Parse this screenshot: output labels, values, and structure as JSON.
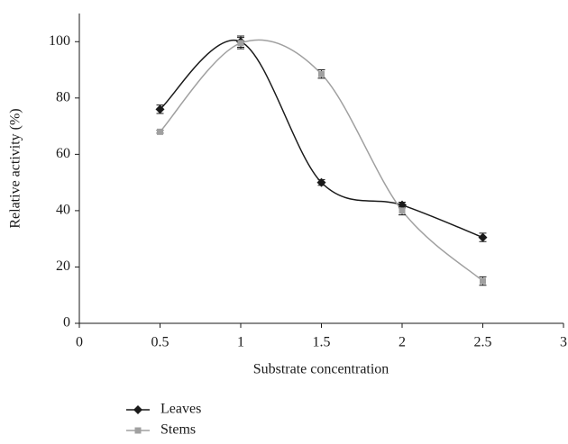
{
  "chart_data": {
    "type": "line",
    "x_label": "Substrate concentration",
    "y_label": "Relative activity (%)",
    "x": [
      0.5,
      1,
      1.5,
      2,
      2.5
    ],
    "series": [
      {
        "name": "Leaves",
        "color": "#1a1a1a",
        "marker": "diamond",
        "values": [
          76,
          100,
          50,
          42,
          30.5
        ],
        "errors": [
          1.5,
          2,
          1,
          1,
          1.5
        ]
      },
      {
        "name": "Stems",
        "color": "#a0a0a0",
        "marker": "square",
        "values": [
          68,
          99.5,
          88.5,
          40,
          15
        ],
        "errors": [
          0.5,
          2,
          1.5,
          1.5,
          1.5
        ]
      }
    ],
    "xlim": [
      0,
      3
    ],
    "xticks": [
      0,
      0.5,
      1,
      1.5,
      2,
      2.5,
      3
    ],
    "ylim": [
      0,
      110
    ],
    "yticks": [
      0,
      20,
      40,
      60,
      80,
      100
    ],
    "smooth": true,
    "grid": false
  }
}
